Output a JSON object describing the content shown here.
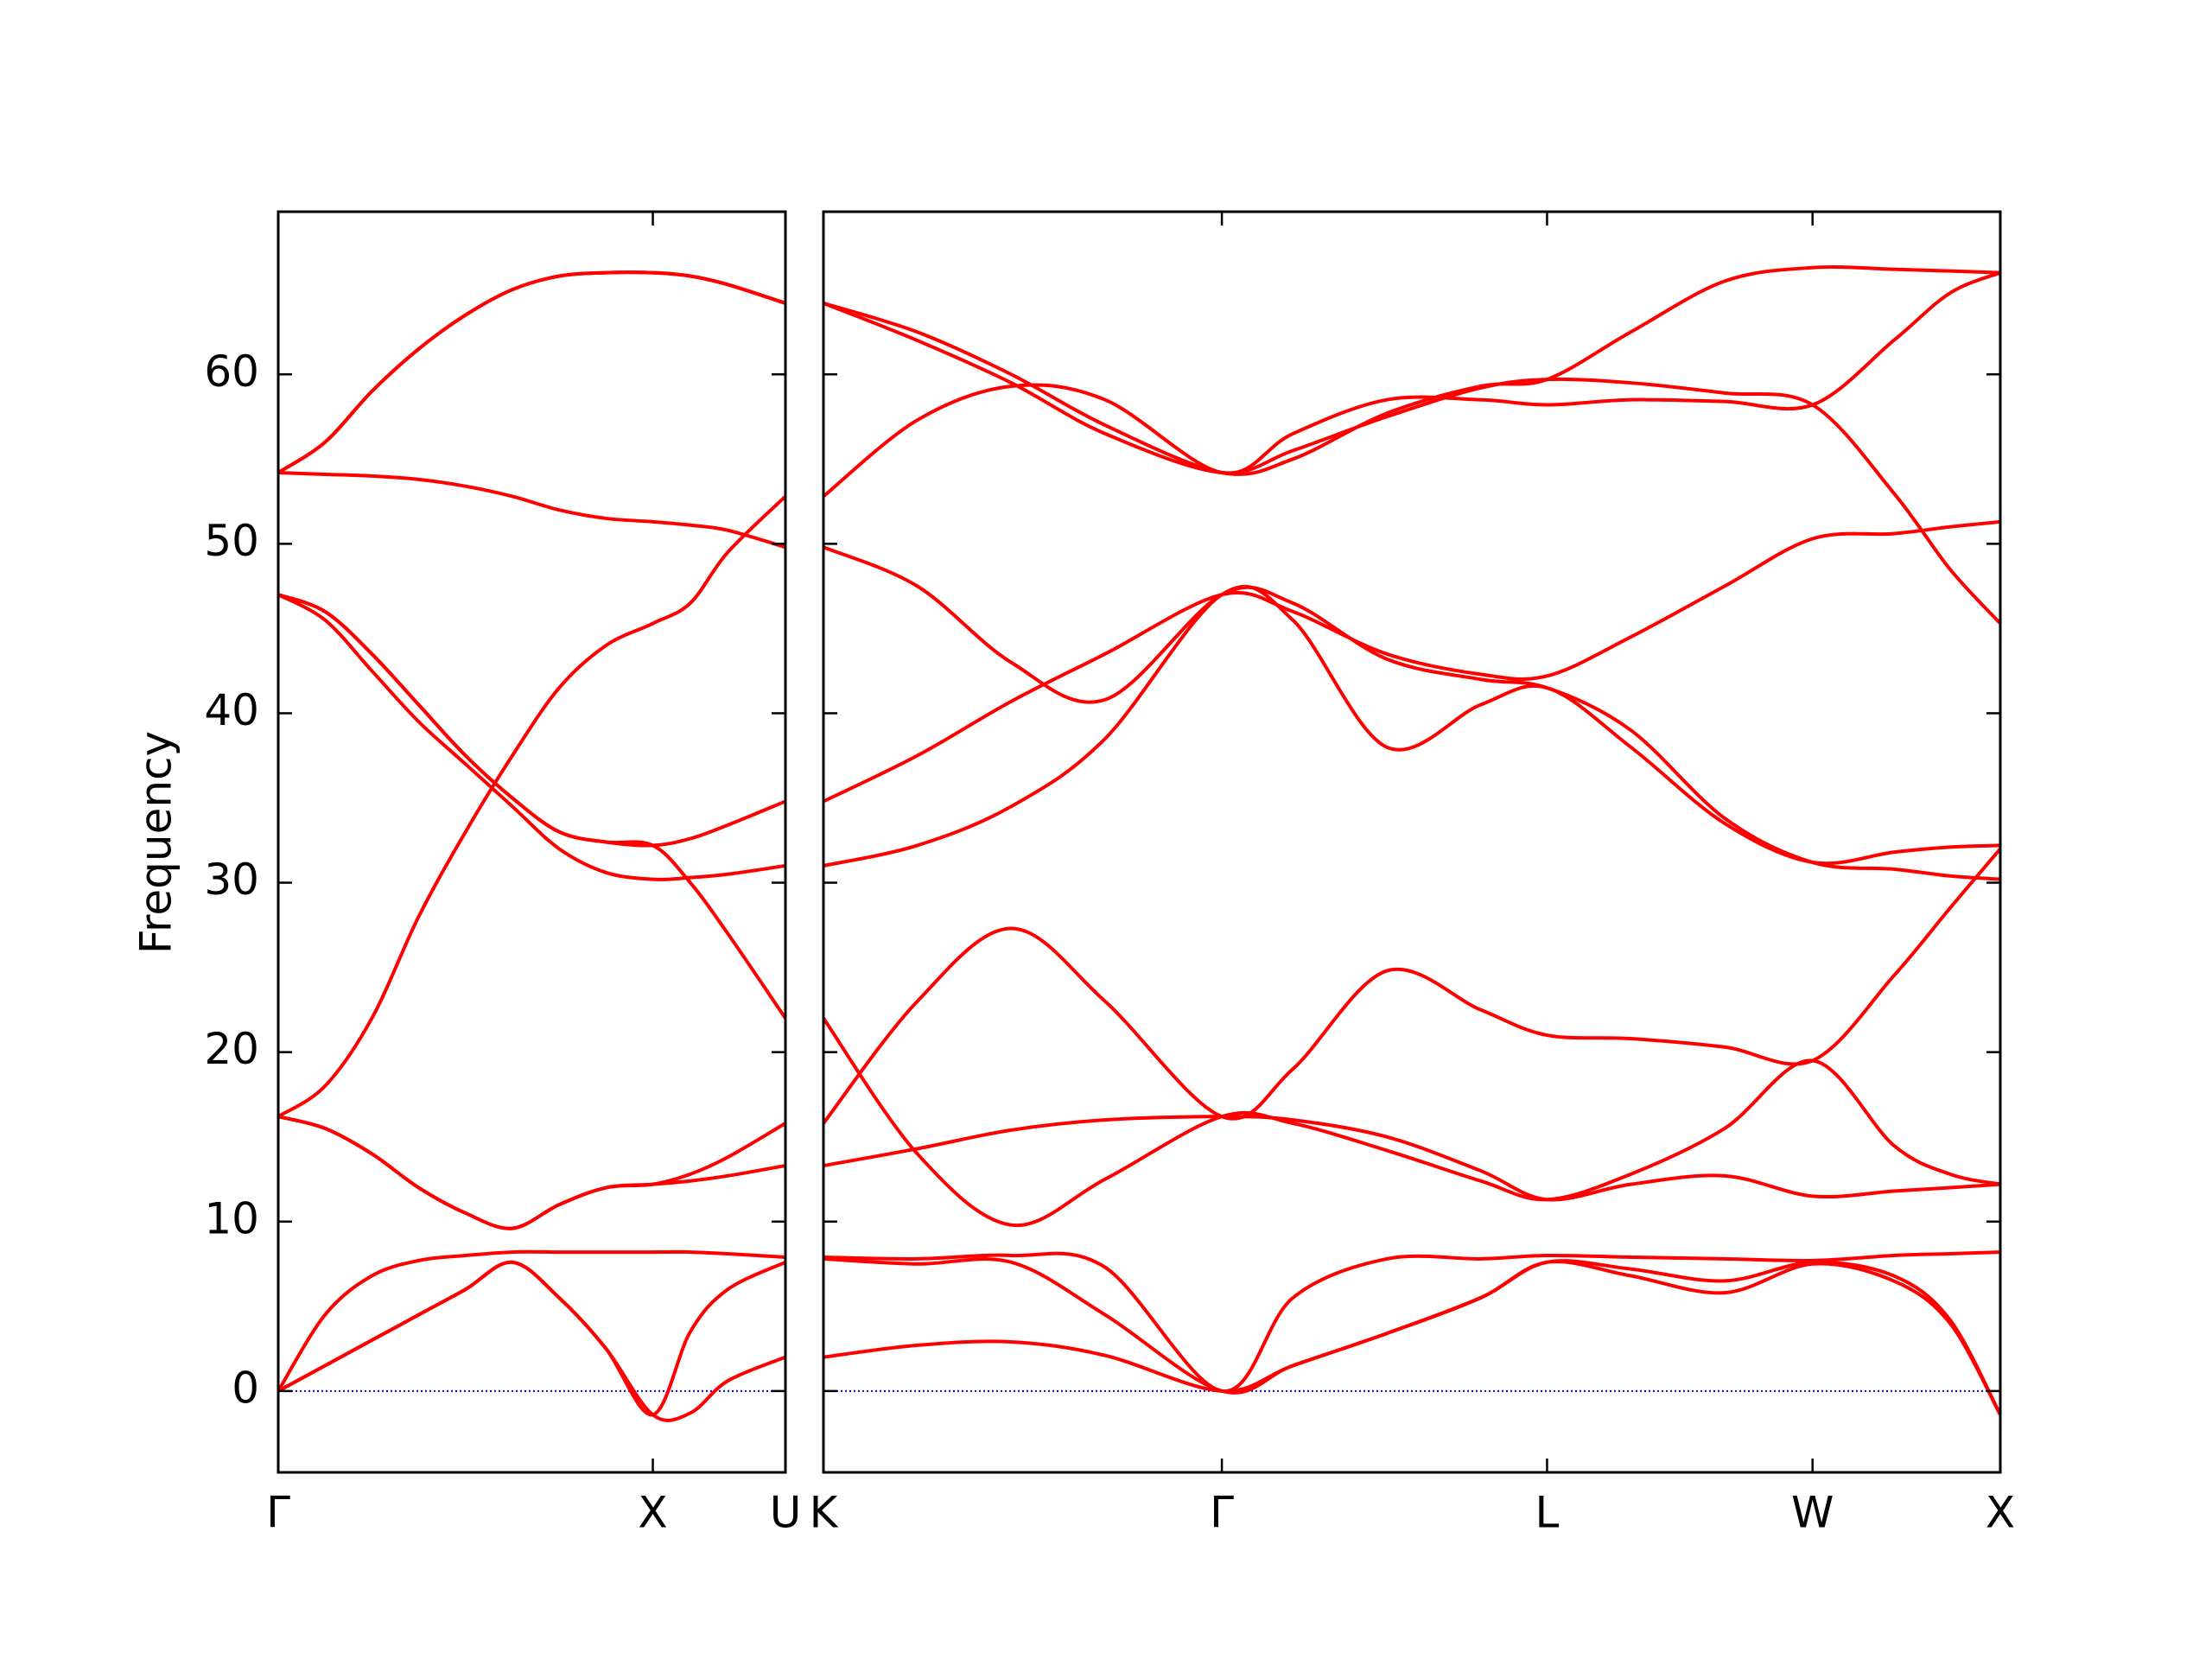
{
  "chart_data": [
    {
      "type": "line",
      "ylabel": "Frequency",
      "color": "#ff0000",
      "xlim": [
        0,
        1.354
      ],
      "ylim": [
        -4.8,
        69.6
      ],
      "xticks": [
        {
          "value": 0,
          "label": "Γ"
        },
        {
          "value": 1.0,
          "label": "X"
        },
        {
          "value": 1.354,
          "label": "U"
        }
      ],
      "yticks": [
        0,
        10,
        20,
        30,
        40,
        50,
        60
      ],
      "hline": {
        "value": 0,
        "color": "#0000ff"
      },
      "x": [
        0,
        0.125,
        0.25,
        0.375,
        0.5,
        0.625,
        0.75,
        0.875,
        1.0,
        1.1,
        1.2,
        1.354
      ],
      "series": [
        {
          "values": [
            0,
            1.5,
            3,
            4.5,
            6,
            7.6,
            5.5,
            2.5,
            -1.4,
            -1.3,
            0.6,
            2.0
          ]
        },
        {
          "values": [
            0,
            1.5,
            3,
            4.5,
            6,
            7.6,
            5.5,
            2.5,
            -1.4,
            3.5,
            6,
            7.6
          ]
        },
        {
          "values": [
            0,
            4.5,
            6.8,
            7.7,
            8.0,
            8.2,
            8.2,
            8.2,
            8.2,
            8.2,
            8.1,
            7.9
          ]
        },
        {
          "values": [
            16.2,
            15.5,
            14,
            12,
            10.5,
            9.6,
            11,
            12,
            12.2,
            12.4,
            12.7,
            13.3
          ]
        },
        {
          "values": [
            16.2,
            15.5,
            14,
            12,
            10.5,
            9.6,
            11,
            12,
            12.2,
            12.8,
            13.8,
            15.8
          ]
        },
        {
          "values": [
            16.2,
            18,
            22,
            28,
            33,
            37.5,
            41.5,
            44,
            45.3,
            46.5,
            49.5,
            52.8
          ]
        },
        {
          "values": [
            47,
            46,
            43.5,
            40.5,
            37.5,
            35,
            33,
            32.4,
            32.2,
            32.6,
            33.4,
            34.8
          ]
        },
        {
          "values": [
            47,
            45.5,
            42.5,
            39.5,
            37,
            34.5,
            32,
            30.6,
            30.2,
            30.3,
            30.5,
            31
          ]
        },
        {
          "values": [
            47,
            46,
            43.5,
            40.5,
            37.5,
            35,
            33,
            32.4,
            32.2,
            30,
            27,
            22
          ]
        },
        {
          "values": [
            54.2,
            56,
            59,
            61.5,
            63.5,
            65,
            65.8,
            66,
            66,
            65.8,
            65.3,
            64.2
          ]
        },
        {
          "values": [
            54.2,
            56,
            59,
            61.5,
            63.5,
            65,
            65.8,
            66,
            66,
            65.8,
            65.3,
            64.2
          ]
        },
        {
          "values": [
            54.2,
            54.1,
            54,
            53.8,
            53.4,
            52.8,
            52,
            51.5,
            51.3,
            51.1,
            50.8,
            49.8
          ]
        }
      ]
    },
    {
      "type": "line",
      "color": "#ff0000",
      "xlim": [
        0,
        3.134
      ],
      "ylim": [
        -4.8,
        69.6
      ],
      "xticks": [
        {
          "value": 0,
          "label": "K"
        },
        {
          "value": 1.061,
          "label": "Γ"
        },
        {
          "value": 1.927,
          "label": "L"
        },
        {
          "value": 2.634,
          "label": "W"
        },
        {
          "value": 3.134,
          "label": "X"
        }
      ],
      "hline": {
        "value": 0,
        "color": "#0000ff"
      },
      "x": [
        0,
        0.25,
        0.5,
        0.75,
        1.061,
        1.25,
        1.5,
        1.75,
        1.927,
        2.15,
        2.4,
        2.634,
        2.85,
        3.0,
        3.134
      ],
      "series": [
        {
          "values": [
            2,
            2.7,
            2.9,
            2.1,
            0,
            1.5,
            3.4,
            5.5,
            7.6,
            6.8,
            5.8,
            7.5,
            6.5,
            4,
            -1.4
          ]
        },
        {
          "values": [
            7.8,
            7.5,
            7.6,
            4.5,
            0,
            1.5,
            3.4,
            5.5,
            7.6,
            7.2,
            6.5,
            7.6,
            6.8,
            4.2,
            -1.4
          ]
        },
        {
          "values": [
            7.9,
            7.8,
            8.0,
            7.3,
            0,
            5.5,
            7.8,
            7.8,
            8,
            7.9,
            7.8,
            7.7,
            8,
            8.1,
            8.2
          ]
        },
        {
          "values": [
            13.3,
            14.3,
            15.4,
            16,
            16.2,
            16,
            15,
            13,
            11.3,
            12.2,
            12.7,
            11.5,
            11.8,
            12,
            12.2
          ]
        },
        {
          "values": [
            22,
            14,
            9.8,
            12.5,
            16.2,
            15.8,
            14.2,
            12.4,
            11.3,
            12.8,
            15.5,
            19.5,
            14.5,
            12.8,
            12.2
          ]
        },
        {
          "values": [
            15.8,
            23,
            27.3,
            23,
            16.2,
            19,
            24.8,
            22.5,
            21,
            20.8,
            20.3,
            19.5,
            24.5,
            28.5,
            32
          ]
        },
        {
          "values": [
            31,
            32.2,
            34.5,
            38.5,
            47,
            45.5,
            38,
            40.5,
            41.5,
            38,
            33.5,
            31.2,
            31.8,
            32.1,
            32.2
          ]
        },
        {
          "values": [
            34.8,
            37.5,
            40.7,
            43.5,
            47,
            46,
            43.5,
            42.3,
            42.2,
            44.5,
            47.5,
            50.3,
            50.6,
            51,
            51.3
          ]
        },
        {
          "values": [
            49.8,
            47.5,
            43,
            40.8,
            47,
            46.5,
            43.2,
            42,
            41.5,
            39,
            33.8,
            31.2,
            30.8,
            30.4,
            30.2
          ]
        },
        {
          "values": [
            52.8,
            57.3,
            59.3,
            58.5,
            54.2,
            56.5,
            58.5,
            58.5,
            58.2,
            58.5,
            58.4,
            58.2,
            62,
            64.8,
            66
          ]
        },
        {
          "values": [
            64.2,
            62,
            59.5,
            56.5,
            54.2,
            55.5,
            57.5,
            59.2,
            59.7,
            59.5,
            58.9,
            58.2,
            53,
            48.5,
            45.3
          ]
        },
        {
          "values": [
            64.2,
            62.5,
            60,
            57,
            54.2,
            55,
            57.7,
            59.3,
            59.7,
            62.5,
            65.5,
            66.3,
            66.2,
            66.1,
            66
          ]
        }
      ]
    }
  ]
}
